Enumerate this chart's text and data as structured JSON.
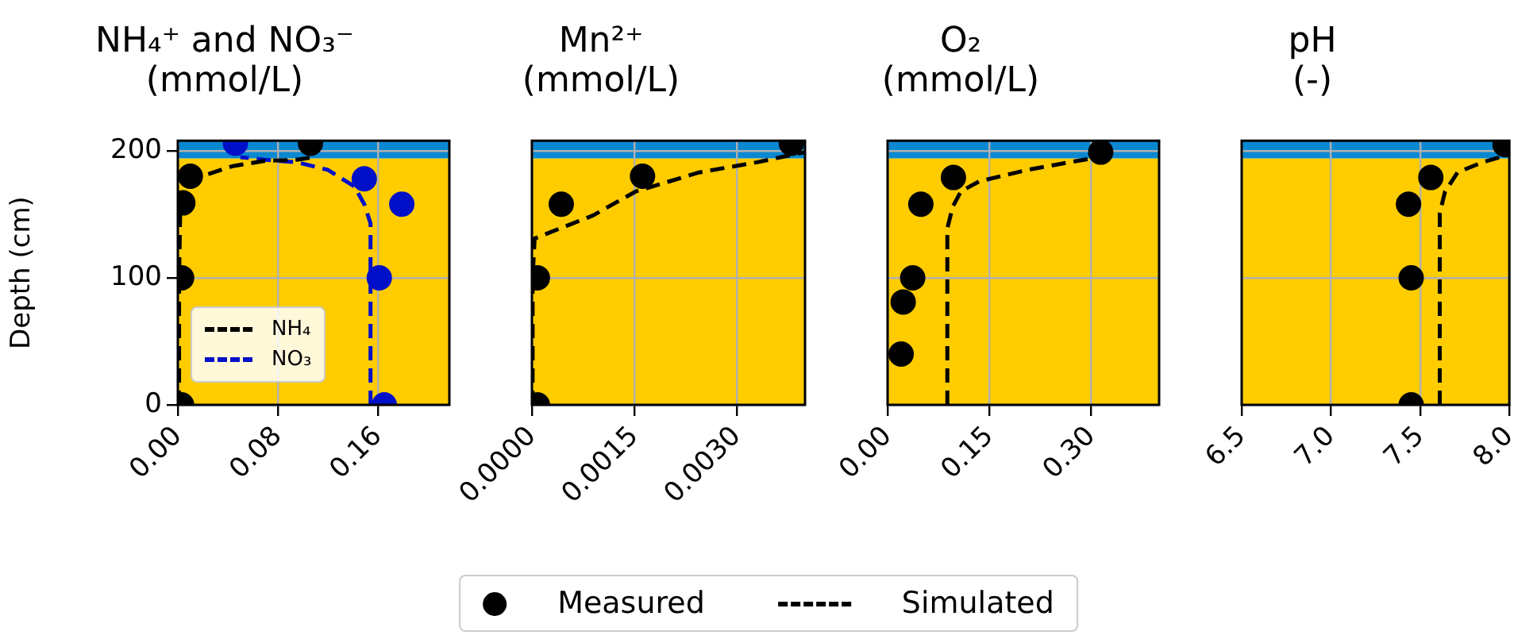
{
  "chart_data": [
    {
      "type": "scatter",
      "title": "NH₄⁺ and NO₃⁻\n(mmol/L)",
      "ylabel": "Depth (cm)",
      "xlim": [
        0,
        0.217
      ],
      "ylim": [
        0,
        208
      ],
      "xticks": [
        {
          "value": 0,
          "label": "0.00"
        },
        {
          "value": 0.08,
          "label": "0.08"
        },
        {
          "value": 0.16,
          "label": "0.16"
        }
      ],
      "yticks": [
        0,
        100,
        200
      ],
      "grid": true,
      "legend": "bottom left",
      "bands": [
        {
          "axis": "y",
          "from": 0,
          "to": 194,
          "color": "#ffcc00"
        },
        {
          "axis": "y",
          "from": 194,
          "to": 208,
          "color": "#0a88d0"
        }
      ],
      "series": [
        {
          "type": "scatter",
          "marker": "circle",
          "color": "#000000",
          "x": [
            0.003,
            0.003,
            0.004,
            0.01,
            0.106
          ],
          "values": [
            0,
            100,
            159,
            180,
            206
          ]
        },
        {
          "type": "scatter",
          "marker": "circle",
          "color": "#0010c8",
          "x": [
            0.046,
            0.149,
            0.179,
            0.161,
            0.165
          ],
          "values": [
            206,
            178,
            158,
            100,
            0
          ]
        },
        {
          "type": "line",
          "name": "NH₄",
          "marker": "none",
          "line_style": "dashed",
          "color": "#000000",
          "x": [
            0.001,
            0.001,
            0.002,
            0.006,
            0.019,
            0.044,
            0.069,
            0.095,
            0.109
          ],
          "values": [
            0,
            100,
            160,
            170,
            180,
            188,
            192,
            193,
            195
          ]
        },
        {
          "type": "line",
          "name": "NO₃",
          "marker": "none",
          "line_style": "dashed",
          "color": "#0010c8",
          "x": [
            0.154,
            0.154,
            0.149,
            0.141,
            0.12,
            0.095,
            0.069,
            0.05
          ],
          "values": [
            0,
            143,
            158,
            172,
            185,
            191,
            193,
            195
          ]
        }
      ]
    },
    {
      "type": "scatter",
      "title": "Mn²⁺\n(mmol/L)",
      "xlim": [
        0,
        0.004
      ],
      "ylim": [
        0,
        208
      ],
      "xticks": [
        {
          "value": 0,
          "label": "0.0000"
        },
        {
          "value": 0.0015,
          "label": "0.0015"
        },
        {
          "value": 0.003,
          "label": "0.0030"
        }
      ],
      "yticks": [
        0,
        100,
        200
      ],
      "tick_labels": "x",
      "grid": true,
      "legend": "bottom",
      "bands": [
        {
          "axis": "y",
          "from": 0,
          "to": 194,
          "color": "#ffcc00"
        },
        {
          "axis": "y",
          "from": 194,
          "to": 208,
          "color": "#0a88d0"
        }
      ],
      "series": [
        {
          "type": "scatter",
          "name": "Measured",
          "marker": "circle",
          "color": "#000000",
          "x": [
            8e-05,
            8e-05,
            0.00043,
            0.00162,
            0.0038
          ],
          "values": [
            0,
            100,
            158,
            180,
            206
          ]
        },
        {
          "type": "line",
          "name": "Simulated",
          "marker": "none",
          "line_style": "dashed",
          "color": "#000000",
          "x": [
            1e-05,
            1e-05,
            4e-05,
            0.00089,
            0.00152,
            0.00245,
            0.0033,
            0.004
          ],
          "values": [
            0,
            100,
            131,
            149,
            168,
            183,
            191,
            199
          ]
        }
      ]
    },
    {
      "type": "scatter",
      "title": "O₂\n(mmol/L)",
      "xlim": [
        0,
        0.4
      ],
      "ylim": [
        0,
        208
      ],
      "xticks": [
        {
          "value": 0,
          "label": "0.00"
        },
        {
          "value": 0.15,
          "label": "0.15"
        },
        {
          "value": 0.3,
          "label": "0.30"
        }
      ],
      "yticks": [
        0,
        100,
        200
      ],
      "tick_labels": "x",
      "grid": true,
      "bands": [
        {
          "axis": "y",
          "from": 0,
          "to": 194,
          "color": "#ffcc00"
        },
        {
          "axis": "y",
          "from": 194,
          "to": 208,
          "color": "#0a88d0"
        }
      ],
      "series": [
        {
          "type": "scatter",
          "marker": "circle",
          "color": "#000000",
          "x": [
            0.02,
            0.023,
            0.037,
            0.049,
            0.097,
            0.314
          ],
          "values": [
            40,
            81,
            100,
            158,
            179,
            199
          ]
        },
        {
          "type": "line",
          "marker": "none",
          "line_style": "dashed",
          "color": "#000000",
          "x": [
            0.088,
            0.088,
            0.096,
            0.108,
            0.135,
            0.206,
            0.268,
            0.312
          ],
          "values": [
            0,
            139,
            156,
            168,
            176,
            185,
            191,
            195
          ]
        }
      ]
    },
    {
      "type": "scatter",
      "title": "pH\n(-)",
      "xlim": [
        6.5,
        8.0
      ],
      "ylim": [
        0,
        208
      ],
      "xticks": [
        {
          "value": 6.5,
          "label": "6.5"
        },
        {
          "value": 7,
          "label": "7.0"
        },
        {
          "value": 7.5,
          "label": "7.5"
        },
        {
          "value": 8,
          "label": "8.0"
        }
      ],
      "yticks": [
        0,
        100,
        200
      ],
      "tick_labels": "x",
      "grid": true,
      "bands": [
        {
          "axis": "y",
          "from": 0,
          "to": 194,
          "color": "#ffcc00"
        },
        {
          "axis": "y",
          "from": 194,
          "to": 208,
          "color": "#0a88d0"
        }
      ],
      "series": [
        {
          "type": "scatter",
          "marker": "circle",
          "color": "#000000",
          "x": [
            7.45,
            7.45,
            7.435,
            7.56,
            7.976
          ],
          "values": [
            0,
            100,
            158,
            179,
            205
          ]
        },
        {
          "type": "line",
          "marker": "none",
          "line_style": "dashed",
          "color": "#000000",
          "x": [
            7.61,
            7.61,
            7.64,
            7.71,
            7.85,
            8.0
          ],
          "values": [
            0,
            151,
            168,
            183,
            191,
            197
          ]
        }
      ]
    }
  ]
}
